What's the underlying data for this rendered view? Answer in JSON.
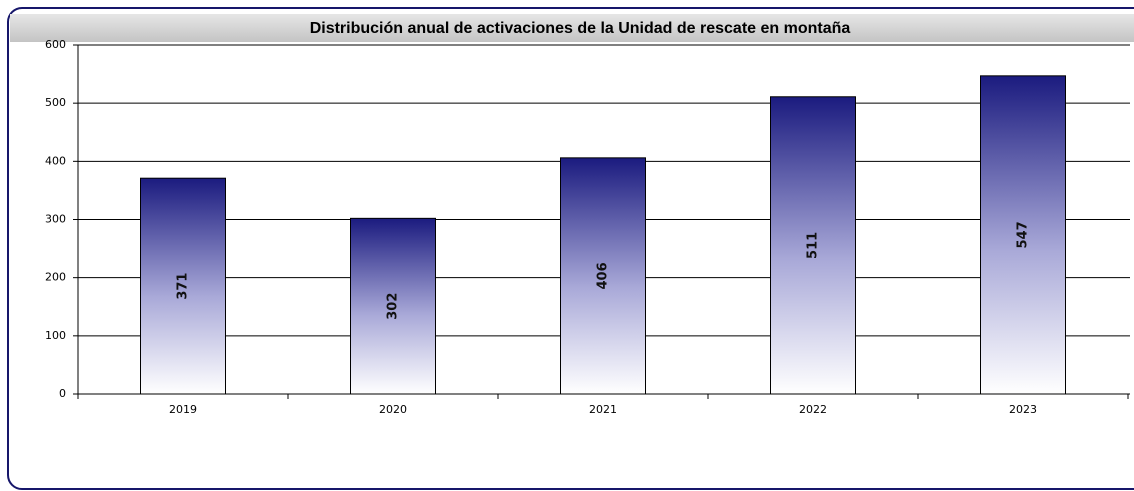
{
  "chart_data": {
    "type": "bar",
    "title": "Distribución anual de activaciones de la Unidad de rescate en montaña",
    "categories": [
      "2019",
      "2020",
      "2021",
      "2022",
      "2023"
    ],
    "values": [
      371,
      302,
      406,
      511,
      547
    ],
    "color": "#1b1b7f",
    "ylim": [
      0,
      600
    ],
    "yticks": [
      0,
      100,
      200,
      300,
      400,
      500,
      600
    ],
    "grid": true
  }
}
